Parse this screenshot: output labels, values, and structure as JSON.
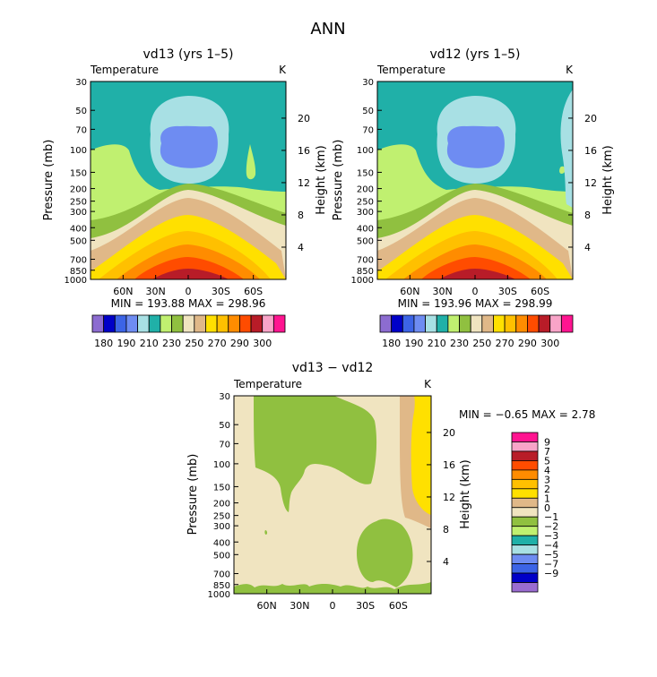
{
  "figure_title": "ANN",
  "colors": {
    "temp_levels": [
      "#8c6cd0",
      "#0000c8",
      "#3c64e6",
      "#6e8cf2",
      "#a8e0e4",
      "#20b0a8",
      "#c0f070",
      "#90c040",
      "#f0e4c0",
      "#e0b888",
      "#ffe000",
      "#ffc000",
      "#ff8c00",
      "#ff4c00",
      "#b81c28",
      "#f8a4c8",
      "#ff1490"
    ],
    "diff_levels": [
      "#9a6cd0",
      "#0000c8",
      "#3c64e6",
      "#6e8cf2",
      "#a8e0e4",
      "#20b0a8",
      "#c0f070",
      "#90c040",
      "#f0e4c0",
      "#e0b888",
      "#ffe000",
      "#ffc000",
      "#ff8c00",
      "#ff4c00",
      "#b81c28",
      "#f8a4c8",
      "#ff1490"
    ]
  },
  "chart_data": [
    {
      "type": "heatmap",
      "title": "vd13 (yrs 1–5)",
      "left_label": "Temperature",
      "right_label": "K",
      "ylabel": "Pressure (mb)",
      "y2label": "Height (km)",
      "x_ticks": [
        "60N",
        "30N",
        "0",
        "30S",
        "60S"
      ],
      "y_ticks": [
        "30",
        "50",
        "70",
        "100",
        "150",
        "200",
        "250",
        "300",
        "400",
        "500",
        "700",
        "850",
        "1000"
      ],
      "y2_ticks": [
        "20",
        "16",
        "12",
        "8",
        "4"
      ],
      "stats": "MIN = 193.88   MAX = 298.96",
      "legend_labels": [
        "180",
        "190",
        "210",
        "230",
        "250",
        "270",
        "290",
        "300"
      ],
      "ylim": [
        1000,
        30
      ]
    },
    {
      "type": "heatmap",
      "title": "vd12 (yrs 1–5)",
      "left_label": "Temperature",
      "right_label": "K",
      "ylabel": "Pressure (mb)",
      "y2label": "Height (km)",
      "x_ticks": [
        "60N",
        "30N",
        "0",
        "30S",
        "60S"
      ],
      "y_ticks": [
        "30",
        "50",
        "70",
        "100",
        "150",
        "200",
        "250",
        "300",
        "400",
        "500",
        "700",
        "850",
        "1000"
      ],
      "y2_ticks": [
        "20",
        "16",
        "12",
        "8",
        "4"
      ],
      "stats": "MIN = 193.96   MAX = 298.99",
      "legend_labels": [
        "180",
        "190",
        "210",
        "230",
        "250",
        "270",
        "290",
        "300"
      ],
      "ylim": [
        1000,
        30
      ]
    },
    {
      "type": "heatmap",
      "title": "vd13 − vd12",
      "left_label": "Temperature",
      "right_label": "K",
      "ylabel": "Pressure (mb)",
      "y2label": "Height (km)",
      "x_ticks": [
        "60N",
        "30N",
        "0",
        "30S",
        "60S"
      ],
      "y_ticks": [
        "30",
        "50",
        "70",
        "100",
        "150",
        "200",
        "250",
        "300",
        "400",
        "500",
        "700",
        "850",
        "1000"
      ],
      "y2_ticks": [
        "20",
        "16",
        "12",
        "8",
        "4"
      ],
      "stats": "MIN =   −0.65   MAX =    2.78",
      "legend_labels": [
        "9",
        "7",
        "5",
        "4",
        "3",
        "2",
        "1",
        "0",
        "−1",
        "−2",
        "−3",
        "−4",
        "−5",
        "−7",
        "−9"
      ],
      "ylim": [
        1000,
        30
      ]
    }
  ]
}
